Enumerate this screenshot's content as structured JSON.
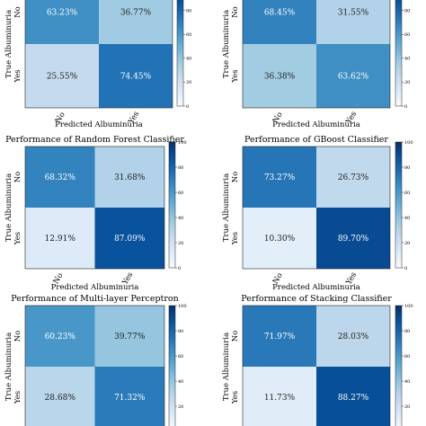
{
  "chart_data": [
    {
      "type": "heatmap",
      "title": "",
      "xlabel": "Predicted Albuminuria",
      "ylabel": "True Albuminuria",
      "x_categories": [
        "No",
        "Yes"
      ],
      "y_categories": [
        "No",
        "Yes"
      ],
      "values": [
        [
          63.23,
          36.77
        ],
        [
          25.55,
          74.45
        ]
      ],
      "labels": [
        [
          "63.23%",
          "36.77%"
        ],
        [
          "25.55%",
          "74.45%"
        ]
      ],
      "colorbar": {
        "range": [
          0,
          100
        ],
        "ticks": [
          "0",
          "20",
          "40",
          "60",
          "80"
        ]
      }
    },
    {
      "type": "heatmap",
      "title": "",
      "xlabel": "Predicted Albuminuria",
      "ylabel": "True Albuminuria",
      "x_categories": [
        "No",
        "Yes"
      ],
      "y_categories": [
        "No",
        "Yes"
      ],
      "values": [
        [
          68.45,
          31.55
        ],
        [
          36.38,
          63.62
        ]
      ],
      "labels": [
        [
          "68.45%",
          "31.55%"
        ],
        [
          "36.38%",
          "63.62%"
        ]
      ],
      "colorbar": {
        "range": [
          0,
          100
        ],
        "ticks": [
          "0",
          "20",
          "40",
          "60",
          "80"
        ]
      }
    },
    {
      "type": "heatmap",
      "title": "Performance of Random Forest Classifier",
      "xlabel": "Predicted Albuminuria",
      "ylabel": "True Albuminuria",
      "x_categories": [
        "No",
        "Yes"
      ],
      "y_categories": [
        "No",
        "Yes"
      ],
      "values": [
        [
          68.32,
          31.68
        ],
        [
          12.91,
          87.09
        ]
      ],
      "labels": [
        [
          "68.32%",
          "31.68%"
        ],
        [
          "12.91%",
          "87.09%"
        ]
      ],
      "colorbar": {
        "range": [
          0,
          100
        ],
        "ticks": [
          "0",
          "20",
          "40",
          "60",
          "80",
          "100"
        ]
      }
    },
    {
      "type": "heatmap",
      "title": "Performance of GBoost Classifier",
      "xlabel": "Predicted Albuminuria",
      "ylabel": "True Albuminuria",
      "x_categories": [
        "No",
        "Yes"
      ],
      "y_categories": [
        "No",
        "Yes"
      ],
      "values": [
        [
          73.27,
          26.73
        ],
        [
          10.3,
          89.7
        ]
      ],
      "labels": [
        [
          "73.27%",
          "26.73%"
        ],
        [
          "10.30%",
          "89.70%"
        ]
      ],
      "colorbar": {
        "range": [
          0,
          100
        ],
        "ticks": [
          "0",
          "20",
          "40",
          "60",
          "80",
          "100"
        ]
      }
    },
    {
      "type": "heatmap",
      "title": "Performance of Multi-layer Perceptron",
      "xlabel": "",
      "ylabel": "True Albuminuria",
      "x_categories": [],
      "y_categories": [
        "No",
        "Yes"
      ],
      "values": [
        [
          60.23,
          39.77
        ],
        [
          28.68,
          71.32
        ]
      ],
      "labels": [
        [
          "60.23%",
          "39.77%"
        ],
        [
          "28.68%",
          "71.32%"
        ]
      ],
      "colorbar": {
        "range": [
          0,
          100
        ],
        "ticks": [
          "0",
          "20",
          "40",
          "60",
          "80",
          "100"
        ]
      }
    },
    {
      "type": "heatmap",
      "title": "Performance of Stacking Classifier",
      "xlabel": "",
      "ylabel": "True Albuminuria",
      "x_categories": [],
      "y_categories": [
        "No",
        "Yes"
      ],
      "values": [
        [
          71.97,
          28.03
        ],
        [
          11.73,
          88.27
        ]
      ],
      "labels": [
        [
          "71.97%",
          "28.03%"
        ],
        [
          "11.73%",
          "88.27%"
        ]
      ],
      "colorbar": {
        "range": [
          0,
          100
        ],
        "ticks": [
          "0",
          "20",
          "40",
          "60",
          "80",
          "100"
        ]
      }
    }
  ]
}
